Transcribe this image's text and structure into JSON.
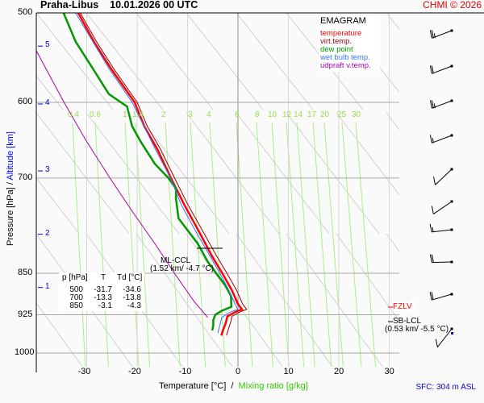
{
  "header": {
    "title": "Praha-Libus    10.01.2026 00 UTC",
    "copyright": "CHMI © 2026"
  },
  "legend": {
    "title": "EMAGRAM",
    "items": [
      {
        "label": "temperature",
        "color": "#ff0000"
      },
      {
        "label": "virt.temp.",
        "color": "#990000"
      },
      {
        "label": "dew point",
        "color": "#009900"
      },
      {
        "label": "wet bulb temp.",
        "color": "#3377ff"
      },
      {
        "label": "udpraft v.temp.",
        "color": "#aa00aa"
      }
    ]
  },
  "table": {
    "headers": [
      "p [hPa]",
      "T",
      "Td [°C]"
    ],
    "rows": [
      [
        "500",
        "-31.7",
        "-34.6"
      ],
      [
        "700",
        "-13.3",
        "-13.8"
      ],
      [
        "850",
        "-3.1",
        "-4.3"
      ]
    ]
  },
  "annotations": {
    "ml_ccl_label": "ML-CCL",
    "ml_ccl_value": "(1.52 km/ -4.7 °C)",
    "fzlv_label": "FZLV",
    "sb_lcl_label": "SB-LCL",
    "sb_lcl_value": "(0.53 km/ -5.5 °C)"
  },
  "axes": {
    "ylabel_pressure": "Pressure [hPa]",
    "ylabel_sep": " / ",
    "ylabel_altitude": "Altitude [km]",
    "xlabel_temp": "Temperature [°C]  /  ",
    "xlabel_mixing": "Mixing ratio [g/kg]",
    "surface": "SFC: 304 m ASL"
  },
  "chart_data": {
    "type": "line",
    "title": "EMAGRAM Praha-Libus 10.01.2026 00 UTC",
    "xlabel": "Temperature [°C] / Mixing ratio [g/kg]",
    "ylabel": "Pressure [hPa] / Altitude [km]",
    "xlim": [
      -40,
      32
    ],
    "ylim": [
      1000,
      500
    ],
    "y_scale": "log",
    "x_ticks": [
      -30,
      -20,
      -10,
      0,
      10,
      20,
      30
    ],
    "pressure_ticks": [
      500,
      600,
      700,
      850,
      925,
      1000
    ],
    "altitude_ticks": [
      {
        "km": 1,
        "p": 875
      },
      {
        "km": 2,
        "p": 785
      },
      {
        "km": 3,
        "p": 690
      },
      {
        "km": 4,
        "p": 602
      },
      {
        "km": 5,
        "p": 535
      }
    ],
    "mixing_ratio_labels": [
      "0.4",
      "0.6",
      "1",
      "1.4",
      "2",
      "3",
      "4",
      "6",
      "8",
      "10",
      "12",
      "14",
      "17",
      "20",
      "25",
      "30"
    ],
    "series": [
      {
        "name": "temperature",
        "color": "#ff0000",
        "points": [
          [
            500,
            -31.7
          ],
          [
            530,
            -28.6
          ],
          [
            560,
            -25.2
          ],
          [
            600,
            -20.5
          ],
          [
            630,
            -18.6
          ],
          [
            660,
            -16.0
          ],
          [
            700,
            -13.3
          ],
          [
            740,
            -10.6
          ],
          [
            780,
            -7.8
          ],
          [
            820,
            -5.2
          ],
          [
            850,
            -3.1
          ],
          [
            880,
            -1.2
          ],
          [
            905,
            0.0
          ],
          [
            915,
            0.8
          ],
          [
            920,
            -0.6
          ],
          [
            928,
            -2.1
          ],
          [
            940,
            -2.4
          ],
          [
            955,
            -3.0
          ],
          [
            965,
            -3.3
          ]
        ]
      },
      {
        "name": "virt.temp.",
        "color": "#990000",
        "points": [
          [
            500,
            -31.6
          ],
          [
            530,
            -28.4
          ],
          [
            560,
            -25.0
          ],
          [
            600,
            -20.3
          ],
          [
            630,
            -18.3
          ],
          [
            660,
            -15.7
          ],
          [
            700,
            -12.9
          ],
          [
            740,
            -10.2
          ],
          [
            780,
            -7.3
          ],
          [
            820,
            -4.6
          ],
          [
            850,
            -2.5
          ],
          [
            880,
            -0.6
          ],
          [
            905,
            0.6
          ],
          [
            915,
            1.4
          ],
          [
            920,
            0.0
          ],
          [
            928,
            -1.5
          ],
          [
            940,
            -1.8
          ],
          [
            955,
            -2.3
          ],
          [
            965,
            -2.6
          ]
        ]
      },
      {
        "name": "dew point",
        "color": "#009900",
        "points": [
          [
            500,
            -34.6
          ],
          [
            530,
            -32.2
          ],
          [
            560,
            -28.8
          ],
          [
            590,
            -25.6
          ],
          [
            605,
            -22.0
          ],
          [
            630,
            -21.0
          ],
          [
            650,
            -19.3
          ],
          [
            680,
            -16.5
          ],
          [
            700,
            -13.8
          ],
          [
            715,
            -12.3
          ],
          [
            730,
            -12.3
          ],
          [
            760,
            -11.8
          ],
          [
            800,
            -8.0
          ],
          [
            830,
            -6.0
          ],
          [
            850,
            -4.3
          ],
          [
            870,
            -2.6
          ],
          [
            890,
            -1.4
          ],
          [
            910,
            -1.3
          ],
          [
            918,
            -3.3
          ],
          [
            925,
            -4.5
          ],
          [
            935,
            -4.9
          ],
          [
            945,
            -4.9
          ],
          [
            955,
            -5.1
          ]
        ]
      },
      {
        "name": "wet bulb temp.",
        "color": "#3377ff",
        "points": [
          [
            500,
            -32.2
          ],
          [
            560,
            -25.6
          ],
          [
            600,
            -21.0
          ],
          [
            660,
            -16.4
          ],
          [
            700,
            -13.4
          ],
          [
            740,
            -11.2
          ],
          [
            780,
            -8.4
          ],
          [
            820,
            -5.6
          ],
          [
            850,
            -3.6
          ],
          [
            880,
            -1.8
          ],
          [
            905,
            -0.6
          ],
          [
            915,
            0.0
          ],
          [
            920,
            -1.6
          ],
          [
            930,
            -3.2
          ],
          [
            945,
            -3.6
          ],
          [
            960,
            -4.0
          ]
        ]
      },
      {
        "name": "udpraft v.temp.",
        "color": "#aa00aa",
        "points": [
          [
            540,
            -40.0
          ],
          [
            600,
            -34.5
          ],
          [
            650,
            -30.0
          ],
          [
            700,
            -25.4
          ],
          [
            750,
            -20.9
          ],
          [
            800,
            -16.5
          ],
          [
            850,
            -12.6
          ],
          [
            900,
            -8.7
          ],
          [
            930,
            -6.0
          ]
        ]
      }
    ],
    "wind_barbs": [
      {
        "p": 535,
        "dir_deg": 260,
        "kt": 25
      },
      {
        "p": 565,
        "dir_deg": 260,
        "kt": 20
      },
      {
        "p": 600,
        "dir_deg": 260,
        "kt": 25
      },
      {
        "p": 635,
        "dir_deg": 260,
        "kt": 15
      },
      {
        "p": 670,
        "dir_deg": 235,
        "kt": 10
      },
      {
        "p": 705,
        "dir_deg": 245,
        "kt": 10
      },
      {
        "p": 740,
        "dir_deg": 275,
        "kt": 15
      },
      {
        "p": 790,
        "dir_deg": 280,
        "kt": 20
      },
      {
        "p": 850,
        "dir_deg": 265,
        "kt": 20
      },
      {
        "p": 910,
        "dir_deg": 225,
        "kt": 10
      }
    ],
    "levels": {
      "ml_ccl": {
        "p": 805,
        "height_km": 1.52,
        "temp_c": -4.7
      },
      "fzlv": {
        "p": 912
      },
      "sb_lcl": {
        "p": 935,
        "height_km": 0.53,
        "temp_c": -5.5
      }
    },
    "grid": true,
    "legend_position": "top-right"
  }
}
